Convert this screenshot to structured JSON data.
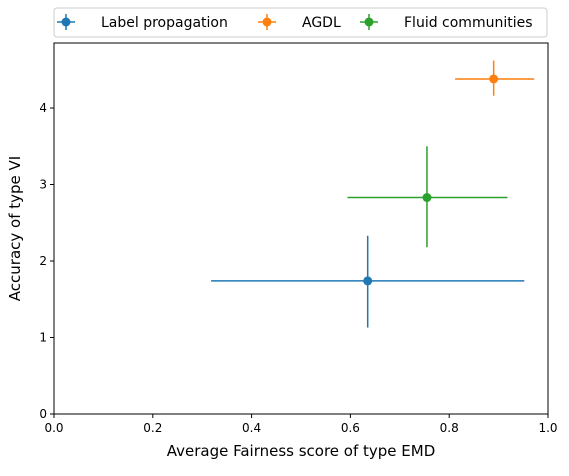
{
  "chart_data": {
    "type": "scatter",
    "title": "",
    "xlabel": "Average Fairness score of type EMD",
    "ylabel": "Accuracy of type VI",
    "xlim": [
      0.0,
      1.0
    ],
    "ylim": [
      0,
      4.85
    ],
    "xticks": [
      "0.0",
      "0.2",
      "0.4",
      "0.6",
      "0.8",
      "1.0"
    ],
    "yticks": [
      "0",
      "1",
      "2",
      "3",
      "4"
    ],
    "grid": false,
    "legend_placement": "top-center-outside",
    "series": [
      {
        "name": "Label propagation",
        "color": "#1f77b4",
        "x": 0.635,
        "y": 1.74,
        "x_err": [
          0.318,
          0.952
        ],
        "y_err": [
          1.13,
          2.33
        ]
      },
      {
        "name": "AGDL",
        "color": "#ff7f0e",
        "x": 0.89,
        "y": 4.38,
        "x_err": [
          0.812,
          0.972
        ],
        "y_err": [
          4.16,
          4.62
        ]
      },
      {
        "name": "Fluid communities",
        "color": "#2ca02c",
        "x": 0.755,
        "y": 2.83,
        "x_err": [
          0.594,
          0.918
        ],
        "y_err": [
          2.18,
          3.5
        ]
      }
    ]
  }
}
